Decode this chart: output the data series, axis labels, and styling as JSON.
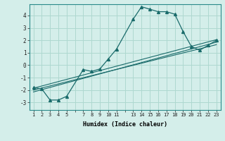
{
  "xlabel": "Humidex (Indice chaleur)",
  "bg_color": "#d4eeea",
  "line_color": "#1a6b6b",
  "grid_color": "#aed8d0",
  "xlim": [
    0.5,
    23.5
  ],
  "ylim": [
    -3.6,
    4.9
  ],
  "yticks": [
    -3,
    -2,
    -1,
    0,
    1,
    2,
    3,
    4
  ],
  "xtick_positions": [
    1,
    2,
    3,
    4,
    5,
    6,
    7,
    8,
    9,
    10,
    11,
    12,
    13,
    14,
    15,
    16,
    17,
    18,
    19,
    20,
    21,
    22,
    23
  ],
  "xtick_labels": [
    "1",
    "2",
    "3",
    "4",
    "5",
    "",
    "7",
    "8",
    "9",
    "10",
    "11",
    "",
    "13",
    "14",
    "15",
    "16",
    "17",
    "18",
    "19",
    "20",
    "21",
    "22",
    "23"
  ],
  "main_line_x": [
    1,
    2,
    3,
    4,
    5,
    7,
    8,
    9,
    10,
    11,
    13,
    14,
    15,
    16,
    17,
    18,
    19,
    20,
    21,
    22,
    23
  ],
  "main_line_y": [
    -1.8,
    -1.9,
    -2.8,
    -2.8,
    -2.5,
    -0.35,
    -0.5,
    -0.3,
    0.5,
    1.3,
    3.7,
    4.7,
    4.5,
    4.3,
    4.3,
    4.1,
    2.7,
    1.5,
    1.2,
    1.6,
    2.0
  ],
  "reg_line1_x": [
    1,
    23
  ],
  "reg_line1_y": [
    -2.15,
    1.85
  ],
  "reg_line2_x": [
    1,
    23
  ],
  "reg_line2_y": [
    -2.0,
    1.65
  ],
  "reg_line3_x": [
    1,
    23
  ],
  "reg_line3_y": [
    -1.85,
    2.05
  ]
}
